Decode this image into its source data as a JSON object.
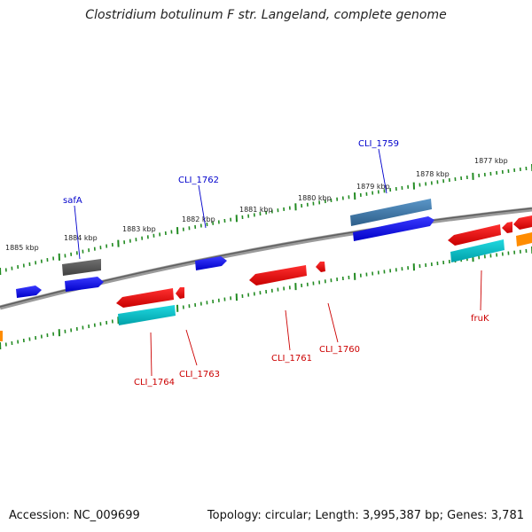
{
  "title": "Clostridium botulinum F str. Langeland, complete genome",
  "footer": {
    "accession": "Accession: NC_009699",
    "summary": "Topology: circular; Length: 3,995,387 bp; Genes: 3,781"
  },
  "scale_ticks": [
    {
      "label": "1885 kbp"
    },
    {
      "label": "1884 kbp"
    },
    {
      "label": "1883 kbp"
    },
    {
      "label": "1882 kbp"
    },
    {
      "label": "1881 kbp"
    },
    {
      "label": "1880 kbp"
    },
    {
      "label": "1879 kbp"
    },
    {
      "label": "1878 kbp"
    },
    {
      "label": "1877 kbp"
    }
  ],
  "gene_labels_upper": [
    {
      "label": "safA",
      "color": "#0000cc"
    },
    {
      "label": "CLI_1762",
      "color": "#0000cc"
    },
    {
      "label": "CLI_1759",
      "color": "#0000cc"
    }
  ],
  "gene_labels_lower": [
    {
      "label": "CLI_1764",
      "color": "#cc0000"
    },
    {
      "label": "CLI_1763",
      "color": "#cc0000"
    },
    {
      "label": "CLI_1761",
      "color": "#cc0000"
    },
    {
      "label": "CLI_1760",
      "color": "#cc0000"
    },
    {
      "label": "fruK",
      "color": "#cc0000"
    }
  ],
  "colors": {
    "backbone": "#808080",
    "tick": "#228b22",
    "blue_gene": "#0000ee",
    "steel_gene": "#4682b4",
    "gray_gene": "#5a5a5a",
    "red_gene": "#ee0000",
    "cyan_gene": "#00c0c8",
    "orange_gene": "#ff8c00"
  }
}
